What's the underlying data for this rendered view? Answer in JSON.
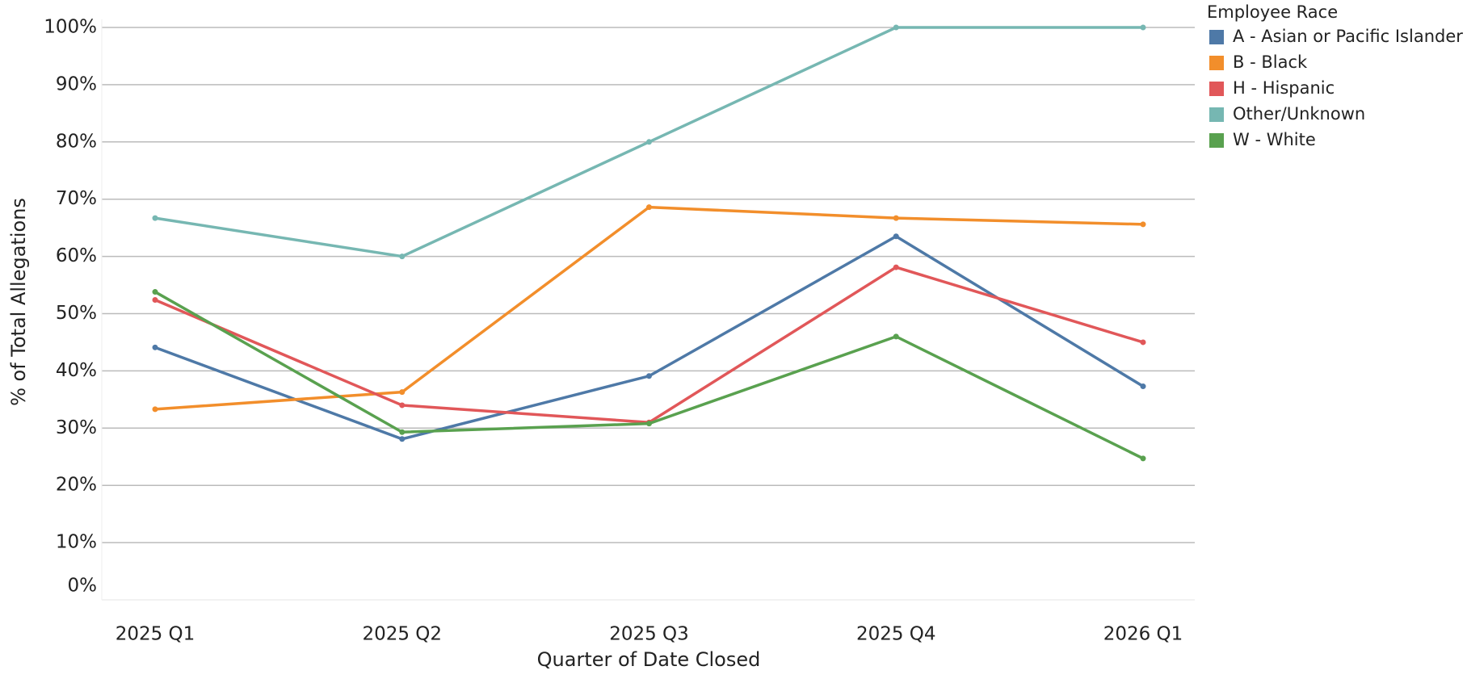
{
  "chart_data": {
    "type": "line",
    "categories": [
      "2025 Q1",
      "2025 Q2",
      "2025 Q3",
      "2025 Q4",
      "2026 Q1"
    ],
    "series": [
      {
        "name": "A - Asian or Pacific Islander",
        "color": "#4e79a7",
        "values": [
          44.1,
          28.1,
          39.1,
          63.5,
          37.3
        ]
      },
      {
        "name": "B - Black",
        "color": "#f28e2b",
        "values": [
          33.3,
          36.3,
          68.6,
          66.7,
          65.6
        ]
      },
      {
        "name": "H - Hispanic",
        "color": "#e15759",
        "values": [
          52.4,
          34.0,
          31.0,
          58.1,
          45.0
        ]
      },
      {
        "name": "Other/Unknown",
        "color": "#76b7b2",
        "values": [
          66.7,
          60.0,
          80.0,
          100,
          100
        ]
      },
      {
        "name": "W - White",
        "color": "#59a14f",
        "values": [
          53.8,
          29.3,
          30.8,
          46.0,
          24.7
        ]
      }
    ],
    "xlabel": "Quarter of Date Closed",
    "ylabel": "% of Total Allegations",
    "legend_title": "Employee Race",
    "ylim": [
      0,
      100
    ],
    "yticks": [
      {
        "value": 0,
        "label": "0%"
      },
      {
        "value": 10,
        "label": "10%"
      },
      {
        "value": 20,
        "label": "20%"
      },
      {
        "value": 30,
        "label": "30%"
      },
      {
        "value": 40,
        "label": "40%"
      },
      {
        "value": 50,
        "label": "50%"
      },
      {
        "value": 60,
        "label": "60%"
      },
      {
        "value": 70,
        "label": "70%"
      },
      {
        "value": 80,
        "label": "80%"
      },
      {
        "value": 90,
        "label": "90%"
      },
      {
        "value": 100,
        "label": "100%"
      }
    ],
    "grid": true,
    "legend": "right"
  }
}
